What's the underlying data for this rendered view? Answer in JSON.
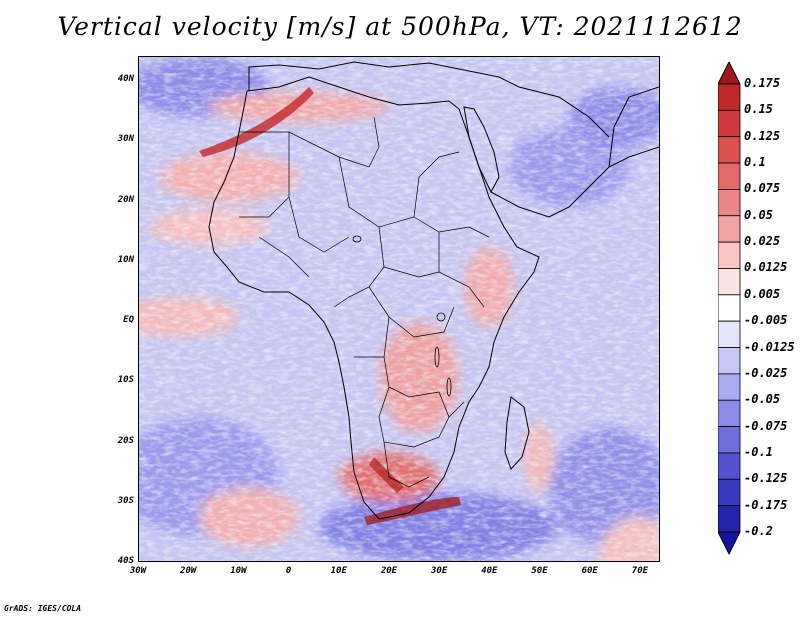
{
  "title": "Vertical velocity [m/s] at 500hPa, VT: 2021112612",
  "footer": "GrADS: IGES/COLA",
  "map": {
    "lat_labels": [
      "40N",
      "30N",
      "20N",
      "10N",
      "EQ",
      "10S",
      "20S",
      "30S",
      "40S"
    ],
    "lon_labels": [
      "30W",
      "20W",
      "10W",
      "0",
      "10E",
      "20E",
      "30E",
      "40E",
      "50E",
      "60E",
      "70E"
    ],
    "lat_range": [
      -40,
      44
    ],
    "lon_range": [
      -30,
      74
    ]
  },
  "colorbar": {
    "levels": [
      "0.175",
      "0.15",
      "0.125",
      "0.1",
      "0.075",
      "0.05",
      "0.025",
      "0.0125",
      "0.005",
      "-0.005",
      "-0.0125",
      "-0.025",
      "-0.05",
      "-0.075",
      "-0.1",
      "-0.125",
      "-0.175",
      "-0.2"
    ],
    "colors": [
      "#a01818",
      "#c02828",
      "#d03a3a",
      "#dc5050",
      "#e46a6a",
      "#ec8686",
      "#f2a4a4",
      "#f8c4c4",
      "#fbe4e4",
      "#ffffff",
      "#e4e4fa",
      "#c8c8f4",
      "#aaaaee",
      "#8c8ce6",
      "#6e6ede",
      "#5252d2",
      "#3a3ac0",
      "#2424a8",
      "#1414a0"
    ]
  }
}
